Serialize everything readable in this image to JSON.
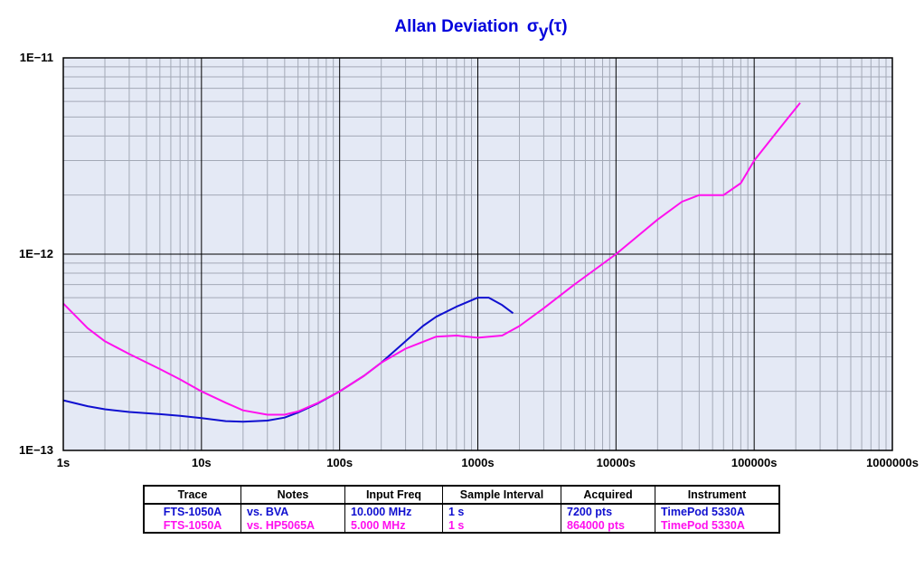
{
  "colors": {
    "plot_background": "#e4e9f5",
    "grid_major": "#000000",
    "grid_minor": "#a3a9b6",
    "title": "#0000dd",
    "series_blue": "#1010d0",
    "series_magenta": "#ff10ee"
  },
  "chart_data": {
    "type": "line",
    "title": "Allan Deviation",
    "title_symbol": "σ",
    "title_subscript": "y",
    "title_arg": "(τ)",
    "xscale": "log",
    "yscale": "log",
    "grid": true,
    "xlim": [
      1,
      1000000
    ],
    "ylim": [
      1e-13,
      1e-11
    ],
    "x_tick_labels": [
      "1s",
      "10s",
      "100s",
      "1000s",
      "10000s",
      "100000s",
      "1000000s"
    ],
    "y_tick_labels": [
      "1E−11",
      "1E−12",
      "1E−13"
    ],
    "series": [
      {
        "name": "FTS-1050A",
        "color": "#1010d0",
        "x": [
          1,
          1.5,
          2,
          3,
          5,
          7,
          10,
          15,
          20,
          30,
          40,
          50,
          70,
          100,
          150,
          200,
          300,
          400,
          500,
          700,
          1000,
          1200,
          1500,
          1800
        ],
        "y": [
          1.8e-13,
          1.68e-13,
          1.62e-13,
          1.57e-13,
          1.53e-13,
          1.5e-13,
          1.46e-13,
          1.41e-13,
          1.4e-13,
          1.42e-13,
          1.47e-13,
          1.56e-13,
          1.74e-13,
          2e-13,
          2.4e-13,
          2.8e-13,
          3.6e-13,
          4.3e-13,
          4.8e-13,
          5.4e-13,
          6e-13,
          6e-13,
          5.5e-13,
          5e-13
        ]
      },
      {
        "name": "FTS-1050A",
        "color": "#ff10ee",
        "x": [
          1,
          1.5,
          2,
          3,
          5,
          7,
          10,
          15,
          20,
          30,
          40,
          50,
          70,
          100,
          150,
          200,
          300,
          500,
          700,
          1000,
          1500,
          2000,
          3000,
          5000,
          10000,
          20000,
          30000,
          40000,
          60000,
          80000,
          100000,
          150000,
          215000
        ],
        "y": [
          5.6e-13,
          4.2e-13,
          3.6e-13,
          3.1e-13,
          2.6e-13,
          2.3e-13,
          2e-13,
          1.75e-13,
          1.6e-13,
          1.52e-13,
          1.52e-13,
          1.58e-13,
          1.75e-13,
          2e-13,
          2.4e-13,
          2.8e-13,
          3.3e-13,
          3.8e-13,
          3.85e-13,
          3.75e-13,
          3.85e-13,
          4.3e-13,
          5.3e-13,
          7e-13,
          1e-12,
          1.5e-12,
          1.85e-12,
          2e-12,
          2e-12,
          2.3e-12,
          3e-12,
          4.3e-12,
          5.9e-12
        ]
      }
    ]
  },
  "legend_table": {
    "headers": [
      "Trace",
      "Notes",
      "Input Freq",
      "Sample Interval",
      "Acquired",
      "Instrument"
    ],
    "rows": [
      {
        "color": "#1010d0",
        "cells": [
          "FTS-1050A",
          "vs. BVA",
          "10.000 MHz",
          "1 s",
          "7200 pts",
          "TimePod 5330A"
        ]
      },
      {
        "color": "#ff10ee",
        "cells": [
          "FTS-1050A",
          "vs. HP5065A",
          "5.000 MHz",
          "1 s",
          "864000 pts",
          "TimePod 5330A"
        ]
      }
    ]
  }
}
